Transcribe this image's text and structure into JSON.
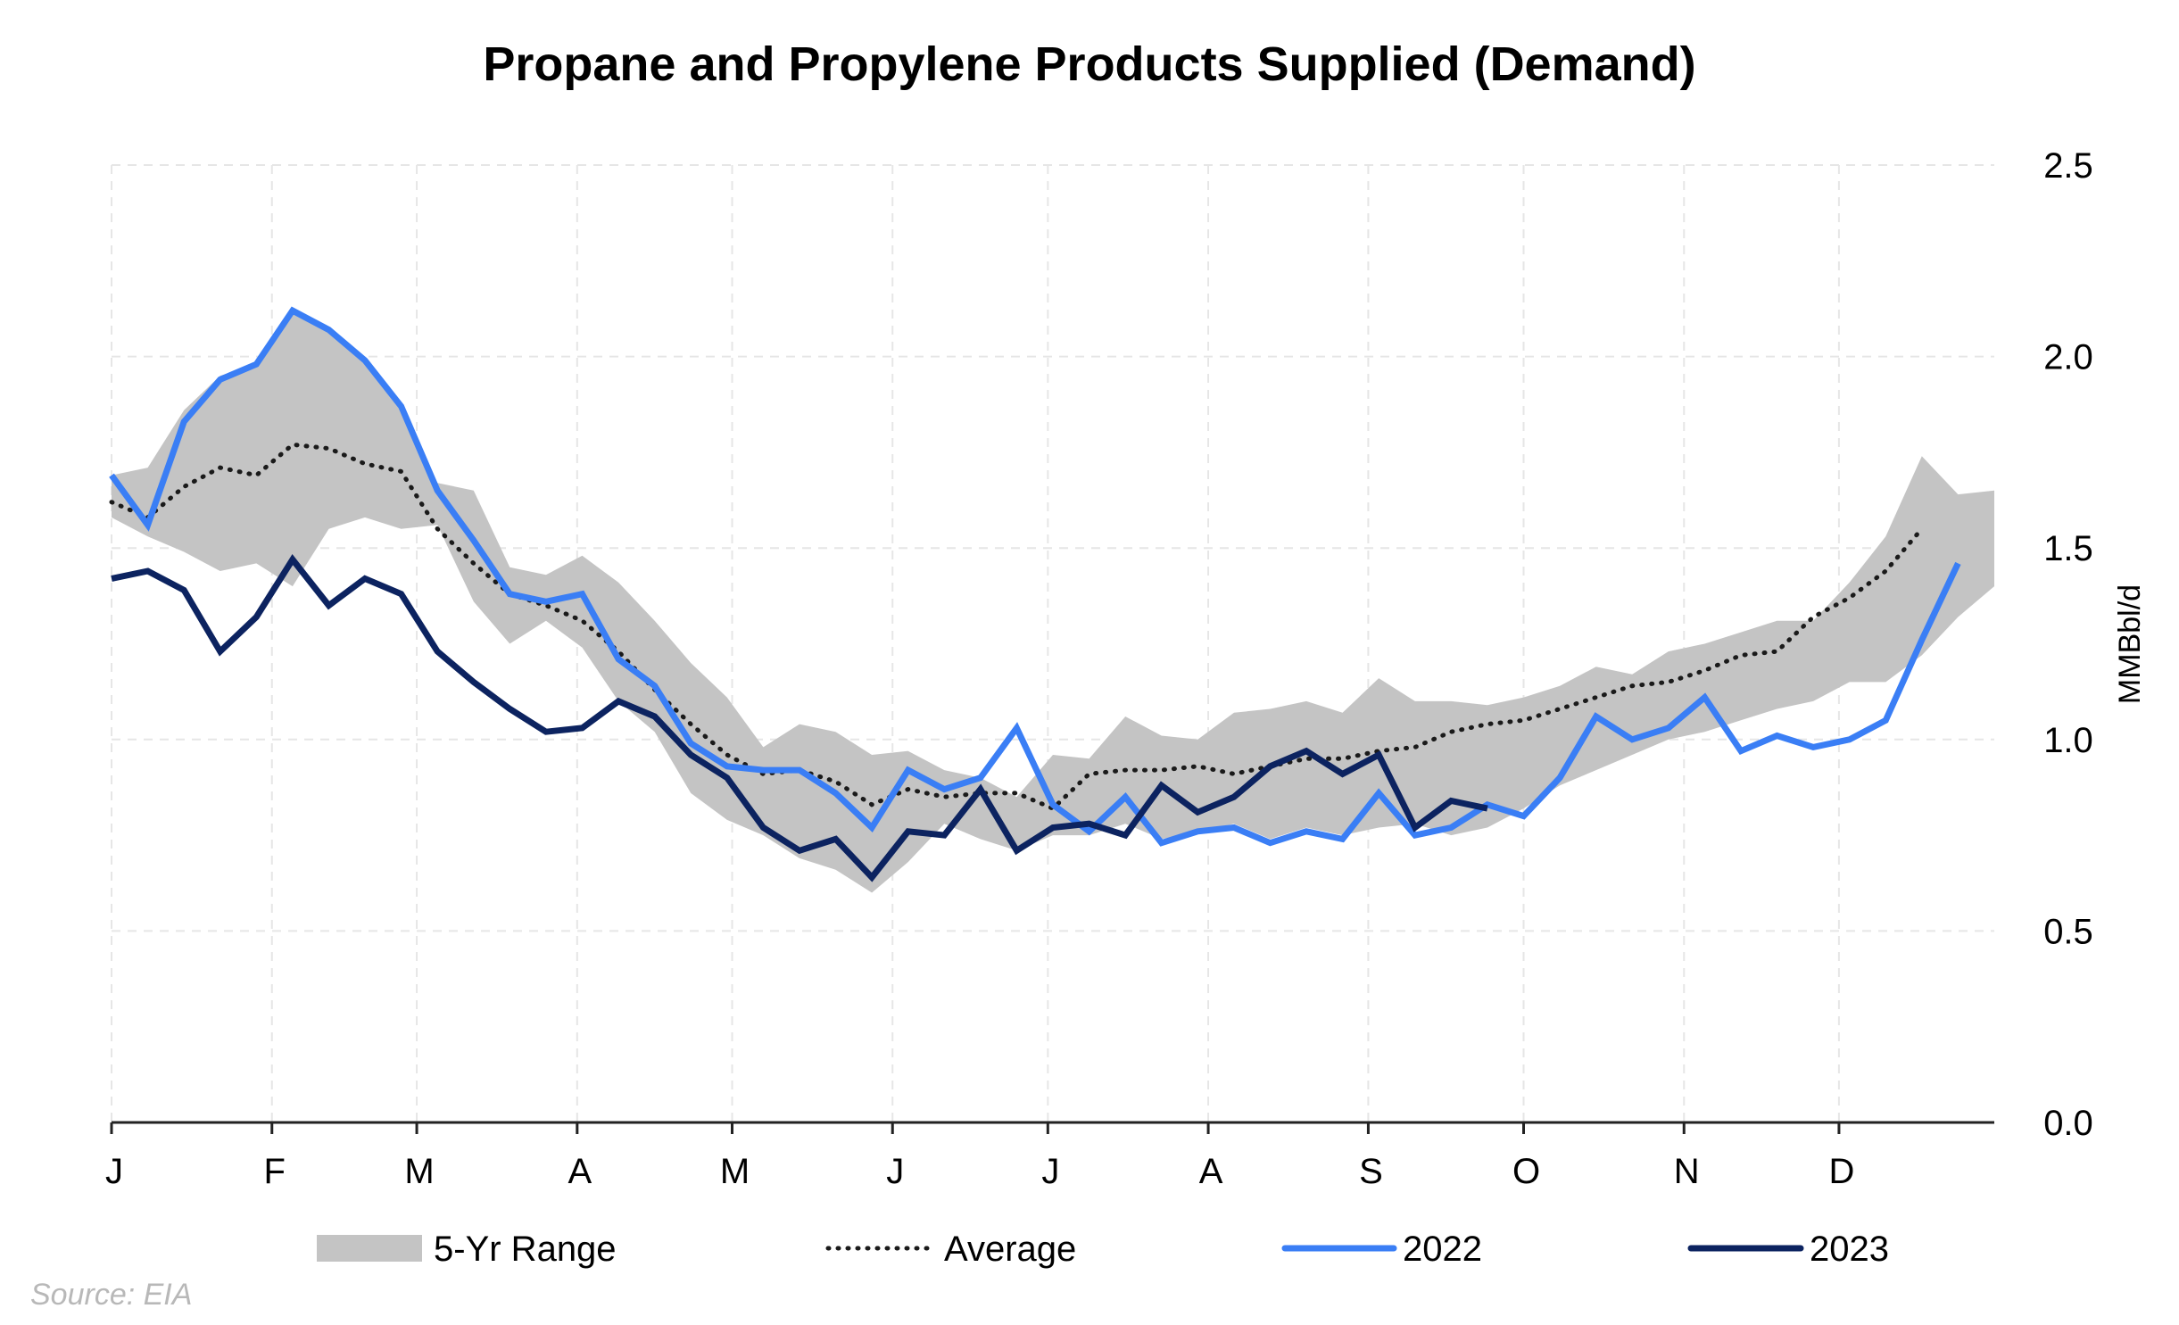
{
  "chart_data": {
    "type": "line",
    "title": "Propane and Propylene Products Supplied (Demand)",
    "ylabel": "MMBbl/d",
    "xlabel": "",
    "ylim": [
      0,
      2.5
    ],
    "y_ticks": [
      "0.0",
      "0.5",
      "1.0",
      "1.5",
      "2.0",
      "2.5"
    ],
    "x_ticks": [
      "J",
      "F",
      "M",
      "A",
      "M",
      "J",
      "J",
      "A",
      "S",
      "O",
      "N",
      "D"
    ],
    "x_unit": "week of year (1-53)",
    "xlim": [
      1,
      53
    ],
    "grid": true,
    "source": "Source: EIA",
    "legend_position": "bottom",
    "legend": {
      "range": "5-Yr Range",
      "average": "Average",
      "y2022": "2022",
      "y2023": "2023"
    },
    "colors": {
      "range": "#c4c4c4",
      "average": "#1a1a1a",
      "y2022": "#3a7ef5",
      "y2023": "#0c2360",
      "grid": "#e6e6e6",
      "axis": "#222222"
    },
    "range_low": [
      1.58,
      1.53,
      1.49,
      1.44,
      1.46,
      1.4,
      1.55,
      1.58,
      1.55,
      1.56,
      1.36,
      1.25,
      1.31,
      1.24,
      1.1,
      1.02,
      0.86,
      0.79,
      0.75,
      0.69,
      0.66,
      0.6,
      0.68,
      0.78,
      0.74,
      0.71,
      0.75,
      0.75,
      0.78,
      0.74,
      0.76,
      0.78,
      0.74,
      0.77,
      0.75,
      0.77,
      0.78,
      0.75,
      0.77,
      0.82,
      0.88,
      0.92,
      0.96,
      1.0,
      1.02,
      1.05,
      1.08,
      1.1,
      1.15,
      1.15,
      1.22,
      1.32,
      1.4
    ],
    "range_high": [
      1.69,
      1.71,
      1.86,
      1.95,
      1.98,
      2.12,
      2.07,
      1.99,
      1.87,
      1.67,
      1.65,
      1.45,
      1.43,
      1.48,
      1.41,
      1.31,
      1.2,
      1.11,
      0.98,
      1.04,
      1.02,
      0.96,
      0.97,
      0.92,
      0.9,
      0.85,
      0.96,
      0.95,
      1.06,
      1.01,
      1.0,
      1.07,
      1.08,
      1.1,
      1.07,
      1.16,
      1.1,
      1.1,
      1.09,
      1.11,
      1.14,
      1.19,
      1.17,
      1.23,
      1.25,
      1.28,
      1.31,
      1.31,
      1.41,
      1.53,
      1.74,
      1.64,
      1.65
    ],
    "series": [
      {
        "name": "Average",
        "values": [
          1.62,
          1.58,
          1.66,
          1.71,
          1.69,
          1.77,
          1.76,
          1.72,
          1.7,
          1.55,
          1.46,
          1.38,
          1.35,
          1.31,
          1.23,
          1.13,
          1.04,
          0.96,
          0.91,
          0.92,
          0.89,
          0.83,
          0.87,
          0.85,
          0.86,
          0.86,
          0.82,
          0.91,
          0.92,
          0.92,
          0.93,
          0.91,
          0.93,
          0.95,
          0.95,
          0.97,
          0.98,
          1.02,
          1.04,
          1.05,
          1.08,
          1.11,
          1.14,
          1.15,
          1.18,
          1.22,
          1.23,
          1.32,
          1.37,
          1.44,
          1.55
        ]
      },
      {
        "name": "2022",
        "values": [
          1.69,
          1.56,
          1.83,
          1.94,
          1.98,
          2.12,
          2.07,
          1.99,
          1.87,
          1.65,
          1.52,
          1.38,
          1.36,
          1.38,
          1.21,
          1.14,
          0.99,
          0.93,
          0.92,
          0.92,
          0.86,
          0.77,
          0.92,
          0.87,
          0.9,
          1.03,
          0.83,
          0.76,
          0.85,
          0.73,
          0.76,
          0.77,
          0.73,
          0.76,
          0.74,
          0.86,
          0.75,
          0.77,
          0.83,
          0.8,
          0.9,
          1.06,
          1.0,
          1.03,
          1.11,
          0.97,
          1.01,
          0.98,
          1.0,
          1.05,
          1.26,
          1.46
        ]
      },
      {
        "name": "2023",
        "values": [
          1.42,
          1.44,
          1.39,
          1.23,
          1.32,
          1.47,
          1.35,
          1.42,
          1.38,
          1.23,
          1.15,
          1.08,
          1.02,
          1.03,
          1.1,
          1.06,
          0.96,
          0.9,
          0.77,
          0.71,
          0.74,
          0.64,
          0.76,
          0.75,
          0.87,
          0.71,
          0.77,
          0.78,
          0.75,
          0.88,
          0.81,
          0.85,
          0.93,
          0.97,
          0.91,
          0.96,
          0.77,
          0.84,
          0.82
        ]
      }
    ]
  }
}
